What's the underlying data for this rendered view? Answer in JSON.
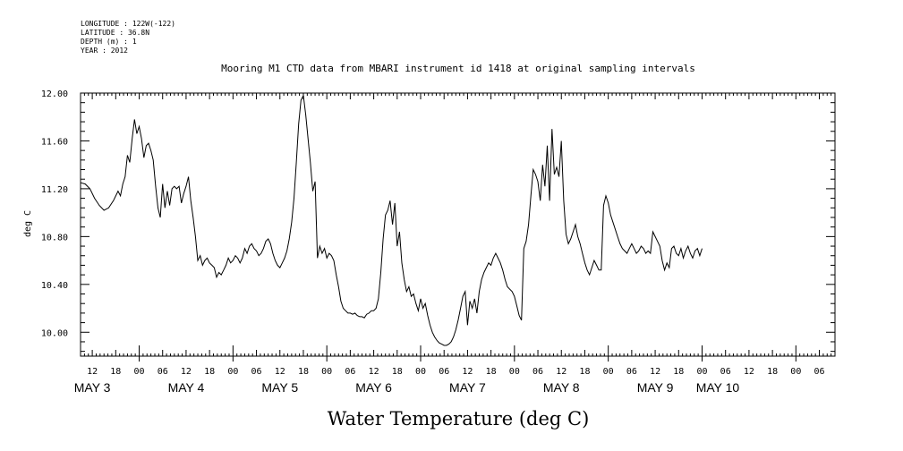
{
  "metadata": [
    {
      "label": "LONGITUDE",
      "value": "122W(-122)"
    },
    {
      "label": "LATITUDE",
      "value": "36.8N"
    },
    {
      "label": "DEPTH (m)",
      "value": "1"
    },
    {
      "label": "YEAR",
      "value": "2012"
    }
  ],
  "chart_data": {
    "type": "line",
    "title": "Mooring M1 CTD data from MBARI instrument id 1418 at original sampling intervals",
    "xlabel": "Water Temperature (deg C)",
    "ylabel": "deg C",
    "x_units": "hours since May 3 00:00 (2012)",
    "xlim": [
      -15,
      178
    ],
    "ylim": [
      9.8,
      12.0
    ],
    "yticks": [
      10.0,
      10.4,
      10.8,
      11.2,
      11.6,
      12.0
    ],
    "ytick_labels": [
      "10.00",
      "10.40",
      "10.80",
      "11.20",
      "11.60",
      "12.00"
    ],
    "hour_ticks": [
      {
        "h": -12,
        "label": "12"
      },
      {
        "h": -6,
        "label": "18"
      },
      {
        "h": 0,
        "label": "00"
      },
      {
        "h": 6,
        "label": "06"
      },
      {
        "h": 12,
        "label": "12"
      },
      {
        "h": 18,
        "label": "18"
      },
      {
        "h": 24,
        "label": "00"
      },
      {
        "h": 30,
        "label": "06"
      },
      {
        "h": 36,
        "label": "12"
      },
      {
        "h": 42,
        "label": "18"
      },
      {
        "h": 48,
        "label": "00"
      },
      {
        "h": 54,
        "label": "06"
      },
      {
        "h": 60,
        "label": "12"
      },
      {
        "h": 66,
        "label": "18"
      },
      {
        "h": 72,
        "label": "00"
      },
      {
        "h": 78,
        "label": "06"
      },
      {
        "h": 84,
        "label": "12"
      },
      {
        "h": 90,
        "label": "18"
      },
      {
        "h": 96,
        "label": "00"
      },
      {
        "h": 102,
        "label": "06"
      },
      {
        "h": 108,
        "label": "12"
      },
      {
        "h": 114,
        "label": "18"
      },
      {
        "h": 120,
        "label": "00"
      },
      {
        "h": 126,
        "label": "06"
      },
      {
        "h": 132,
        "label": "12"
      },
      {
        "h": 138,
        "label": "18"
      },
      {
        "h": 144,
        "label": "00"
      },
      {
        "h": 150,
        "label": "06"
      },
      {
        "h": 156,
        "label": "12"
      },
      {
        "h": 162,
        "label": "18"
      },
      {
        "h": 168,
        "label": "00"
      },
      {
        "h": 174,
        "label": "06"
      }
    ],
    "day_labels": [
      {
        "h": -12,
        "label": "MAY  3"
      },
      {
        "h": 12,
        "label": "MAY  4"
      },
      {
        "h": 36,
        "label": "MAY  5"
      },
      {
        "h": 60,
        "label": "MAY  6"
      },
      {
        "h": 84,
        "label": "MAY  7"
      },
      {
        "h": 108,
        "label": "MAY  8"
      },
      {
        "h": 132,
        "label": "MAY  9"
      },
      {
        "h": 148,
        "label": "MAY 10"
      }
    ],
    "series": [
      {
        "values": [
          [
            -15.0,
            11.25
          ],
          [
            -13.8,
            11.24
          ],
          [
            -12.6,
            11.2
          ],
          [
            -11.4,
            11.12
          ],
          [
            -10.2,
            11.06
          ],
          [
            -9.0,
            11.02
          ],
          [
            -7.8,
            11.04
          ],
          [
            -6.6,
            11.1
          ],
          [
            -5.4,
            11.18
          ],
          [
            -4.8,
            11.14
          ],
          [
            -4.2,
            11.24
          ],
          [
            -3.6,
            11.3
          ],
          [
            -3.0,
            11.48
          ],
          [
            -2.4,
            11.42
          ],
          [
            -1.8,
            11.62
          ],
          [
            -1.2,
            11.78
          ],
          [
            -0.6,
            11.66
          ],
          [
            0.0,
            11.72
          ],
          [
            0.6,
            11.62
          ],
          [
            1.2,
            11.46
          ],
          [
            1.8,
            11.56
          ],
          [
            2.4,
            11.58
          ],
          [
            3.0,
            11.52
          ],
          [
            3.6,
            11.44
          ],
          [
            4.2,
            11.22
          ],
          [
            4.8,
            11.04
          ],
          [
            5.4,
            10.96
          ],
          [
            6.0,
            11.24
          ],
          [
            6.6,
            11.04
          ],
          [
            7.2,
            11.18
          ],
          [
            7.8,
            11.06
          ],
          [
            8.4,
            11.2
          ],
          [
            9.0,
            11.22
          ],
          [
            9.6,
            11.2
          ],
          [
            10.2,
            11.22
          ],
          [
            10.8,
            11.08
          ],
          [
            11.4,
            11.16
          ],
          [
            12.0,
            11.22
          ],
          [
            12.6,
            11.3
          ],
          [
            13.2,
            11.1
          ],
          [
            13.8,
            10.96
          ],
          [
            14.4,
            10.8
          ],
          [
            15.0,
            10.6
          ],
          [
            15.6,
            10.64
          ],
          [
            16.2,
            10.56
          ],
          [
            16.8,
            10.6
          ],
          [
            17.4,
            10.62
          ],
          [
            18.0,
            10.58
          ],
          [
            18.6,
            10.56
          ],
          [
            19.2,
            10.54
          ],
          [
            19.8,
            10.46
          ],
          [
            20.4,
            10.5
          ],
          [
            21.0,
            10.48
          ],
          [
            21.6,
            10.52
          ],
          [
            22.2,
            10.56
          ],
          [
            22.8,
            10.62
          ],
          [
            23.4,
            10.58
          ],
          [
            24.0,
            10.6
          ],
          [
            24.6,
            10.64
          ],
          [
            25.2,
            10.62
          ],
          [
            25.8,
            10.58
          ],
          [
            26.4,
            10.62
          ],
          [
            27.0,
            10.7
          ],
          [
            27.6,
            10.66
          ],
          [
            28.2,
            10.72
          ],
          [
            28.8,
            10.74
          ],
          [
            29.4,
            10.7
          ],
          [
            30.0,
            10.68
          ],
          [
            30.6,
            10.64
          ],
          [
            31.2,
            10.66
          ],
          [
            31.8,
            10.7
          ],
          [
            32.4,
            10.76
          ],
          [
            33.0,
            10.78
          ],
          [
            33.6,
            10.74
          ],
          [
            34.2,
            10.66
          ],
          [
            34.8,
            10.6
          ],
          [
            35.4,
            10.56
          ],
          [
            36.0,
            10.54
          ],
          [
            36.6,
            10.58
          ],
          [
            37.2,
            10.62
          ],
          [
            37.8,
            10.68
          ],
          [
            38.4,
            10.78
          ],
          [
            39.0,
            10.92
          ],
          [
            39.6,
            11.12
          ],
          [
            40.2,
            11.42
          ],
          [
            40.8,
            11.74
          ],
          [
            41.4,
            11.94
          ],
          [
            42.0,
            11.98
          ],
          [
            42.6,
            11.82
          ],
          [
            43.2,
            11.62
          ],
          [
            43.8,
            11.42
          ],
          [
            44.4,
            11.18
          ],
          [
            45.0,
            11.26
          ],
          [
            45.6,
            10.62
          ],
          [
            46.2,
            10.72
          ],
          [
            46.8,
            10.66
          ],
          [
            47.4,
            10.7
          ],
          [
            48.0,
            10.62
          ],
          [
            48.6,
            10.66
          ],
          [
            49.2,
            10.64
          ],
          [
            49.8,
            10.6
          ],
          [
            50.4,
            10.48
          ],
          [
            51.0,
            10.38
          ],
          [
            51.6,
            10.26
          ],
          [
            52.2,
            10.2
          ],
          [
            52.8,
            10.18
          ],
          [
            53.4,
            10.16
          ],
          [
            54.0,
            10.16
          ],
          [
            54.6,
            10.15
          ],
          [
            55.2,
            10.16
          ],
          [
            55.8,
            10.14
          ],
          [
            56.4,
            10.13
          ],
          [
            57.0,
            10.13
          ],
          [
            57.6,
            10.12
          ],
          [
            58.2,
            10.15
          ],
          [
            58.8,
            10.16
          ],
          [
            59.4,
            10.18
          ],
          [
            60.0,
            10.18
          ],
          [
            60.6,
            10.2
          ],
          [
            61.2,
            10.28
          ],
          [
            61.8,
            10.5
          ],
          [
            62.4,
            10.78
          ],
          [
            63.0,
            10.98
          ],
          [
            63.6,
            11.02
          ],
          [
            64.2,
            11.1
          ],
          [
            64.8,
            10.9
          ],
          [
            65.4,
            11.08
          ],
          [
            66.0,
            10.72
          ],
          [
            66.6,
            10.84
          ],
          [
            67.2,
            10.58
          ],
          [
            67.8,
            10.44
          ],
          [
            68.4,
            10.34
          ],
          [
            69.0,
            10.38
          ],
          [
            69.6,
            10.3
          ],
          [
            70.2,
            10.32
          ],
          [
            70.8,
            10.24
          ],
          [
            71.4,
            10.18
          ],
          [
            72.0,
            10.28
          ],
          [
            72.6,
            10.2
          ],
          [
            73.2,
            10.24
          ],
          [
            73.8,
            10.14
          ],
          [
            74.4,
            10.06
          ],
          [
            75.0,
            10.0
          ],
          [
            75.6,
            9.96
          ],
          [
            76.2,
            9.93
          ],
          [
            76.8,
            9.91
          ],
          [
            77.4,
            9.9
          ],
          [
            78.0,
            9.89
          ],
          [
            78.6,
            9.89
          ],
          [
            79.2,
            9.9
          ],
          [
            79.8,
            9.92
          ],
          [
            80.4,
            9.96
          ],
          [
            81.0,
            10.02
          ],
          [
            81.6,
            10.1
          ],
          [
            82.2,
            10.2
          ],
          [
            82.8,
            10.3
          ],
          [
            83.4,
            10.34
          ],
          [
            84.0,
            10.06
          ],
          [
            84.6,
            10.26
          ],
          [
            85.2,
            10.2
          ],
          [
            85.8,
            10.28
          ],
          [
            86.4,
            10.16
          ],
          [
            87.0,
            10.34
          ],
          [
            87.6,
            10.44
          ],
          [
            88.2,
            10.5
          ],
          [
            88.8,
            10.54
          ],
          [
            89.4,
            10.58
          ],
          [
            90.0,
            10.56
          ],
          [
            90.6,
            10.62
          ],
          [
            91.2,
            10.66
          ],
          [
            91.8,
            10.62
          ],
          [
            92.4,
            10.58
          ],
          [
            93.0,
            10.52
          ],
          [
            93.6,
            10.44
          ],
          [
            94.2,
            10.38
          ],
          [
            94.8,
            10.36
          ],
          [
            95.4,
            10.34
          ],
          [
            96.0,
            10.3
          ],
          [
            96.6,
            10.22
          ],
          [
            97.2,
            10.14
          ],
          [
            97.8,
            10.1
          ],
          [
            98.4,
            10.7
          ],
          [
            99.0,
            10.76
          ],
          [
            99.6,
            10.9
          ],
          [
            100.2,
            11.14
          ],
          [
            100.8,
            11.36
          ],
          [
            101.4,
            11.32
          ],
          [
            102.0,
            11.26
          ],
          [
            102.6,
            11.1
          ],
          [
            103.2,
            11.4
          ],
          [
            103.8,
            11.22
          ],
          [
            104.4,
            11.56
          ],
          [
            105.0,
            11.1
          ],
          [
            105.6,
            11.7
          ],
          [
            106.2,
            11.32
          ],
          [
            106.8,
            11.38
          ],
          [
            107.4,
            11.3
          ],
          [
            108.0,
            11.6
          ],
          [
            108.6,
            11.1
          ],
          [
            109.2,
            10.82
          ],
          [
            109.8,
            10.74
          ],
          [
            110.4,
            10.78
          ],
          [
            111.0,
            10.84
          ],
          [
            111.6,
            10.9
          ],
          [
            112.2,
            10.8
          ],
          [
            112.8,
            10.74
          ],
          [
            113.4,
            10.66
          ],
          [
            114.0,
            10.58
          ],
          [
            114.6,
            10.52
          ],
          [
            115.2,
            10.48
          ],
          [
            115.8,
            10.54
          ],
          [
            116.4,
            10.6
          ],
          [
            117.0,
            10.56
          ],
          [
            117.6,
            10.52
          ],
          [
            118.2,
            10.52
          ],
          [
            118.8,
            11.06
          ],
          [
            119.4,
            11.14
          ],
          [
            120.0,
            11.08
          ],
          [
            120.6,
            10.98
          ],
          [
            121.2,
            10.92
          ],
          [
            121.8,
            10.86
          ],
          [
            122.4,
            10.8
          ],
          [
            123.0,
            10.74
          ],
          [
            123.6,
            10.7
          ],
          [
            124.2,
            10.68
          ],
          [
            124.8,
            10.66
          ],
          [
            125.4,
            10.7
          ],
          [
            126.0,
            10.74
          ],
          [
            126.6,
            10.7
          ],
          [
            127.2,
            10.66
          ],
          [
            127.8,
            10.68
          ],
          [
            128.4,
            10.72
          ],
          [
            129.0,
            10.7
          ],
          [
            129.6,
            10.66
          ],
          [
            130.2,
            10.68
          ],
          [
            130.8,
            10.66
          ],
          [
            131.4,
            10.84
          ],
          [
            132.0,
            10.8
          ],
          [
            132.6,
            10.76
          ],
          [
            133.2,
            10.72
          ],
          [
            133.8,
            10.6
          ],
          [
            134.4,
            10.52
          ],
          [
            135.0,
            10.58
          ],
          [
            135.6,
            10.54
          ],
          [
            136.2,
            10.7
          ],
          [
            136.8,
            10.72
          ],
          [
            137.4,
            10.66
          ],
          [
            138.0,
            10.64
          ],
          [
            138.6,
            10.7
          ],
          [
            139.2,
            10.62
          ],
          [
            139.8,
            10.68
          ],
          [
            140.4,
            10.72
          ],
          [
            141.0,
            10.66
          ],
          [
            141.6,
            10.62
          ],
          [
            142.2,
            10.68
          ],
          [
            142.8,
            10.7
          ],
          [
            143.4,
            10.64
          ],
          [
            144.0,
            10.7
          ]
        ]
      }
    ]
  }
}
